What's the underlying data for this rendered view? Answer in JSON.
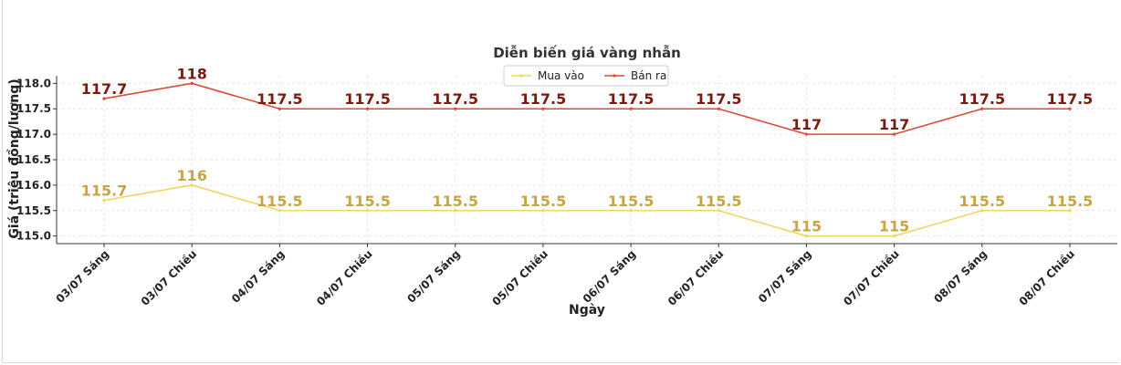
{
  "chart_data": {
    "type": "line",
    "title": "Diễn biến giá vàng nhẫn",
    "xlabel": "Ngày",
    "ylabel": "Giá (triệu đồng/lượng)",
    "categories": [
      "03/07 Sáng",
      "03/07 Chiều",
      "04/07 Sáng",
      "04/07 Chiều",
      "05/07 Sáng",
      "05/07 Chiều",
      "06/07 Sáng",
      "06/07 Chiều",
      "07/07 Sáng",
      "07/07 Chiều",
      "08/07 Sáng",
      "08/07 Chiều"
    ],
    "ylim": [
      114.85,
      118.15
    ],
    "yticks": [
      "115.0",
      "115.5",
      "116.0",
      "116.5",
      "117.0",
      "117.5",
      "118.0"
    ],
    "grid": true,
    "legend_position": "top-center",
    "series": [
      {
        "name": "Mua vào",
        "color": "#f2d55c",
        "label_color": "#c9a443",
        "values": [
          115.7,
          116,
          115.5,
          115.5,
          115.5,
          115.5,
          115.5,
          115.5,
          115,
          115,
          115.5,
          115.5
        ],
        "labels": [
          "115.7",
          "116",
          "115.5",
          "115.5",
          "115.5",
          "115.5",
          "115.5",
          "115.5",
          "115",
          "115",
          "115.5",
          "115.5"
        ]
      },
      {
        "name": "Bán ra",
        "color": "#d84a3a",
        "label_color": "#7a1a10",
        "values": [
          117.7,
          118,
          117.5,
          117.5,
          117.5,
          117.5,
          117.5,
          117.5,
          117,
          117,
          117.5,
          117.5
        ],
        "labels": [
          "117.7",
          "118",
          "117.5",
          "117.5",
          "117.5",
          "117.5",
          "117.5",
          "117.5",
          "117",
          "117",
          "117.5",
          "117.5"
        ]
      }
    ]
  }
}
